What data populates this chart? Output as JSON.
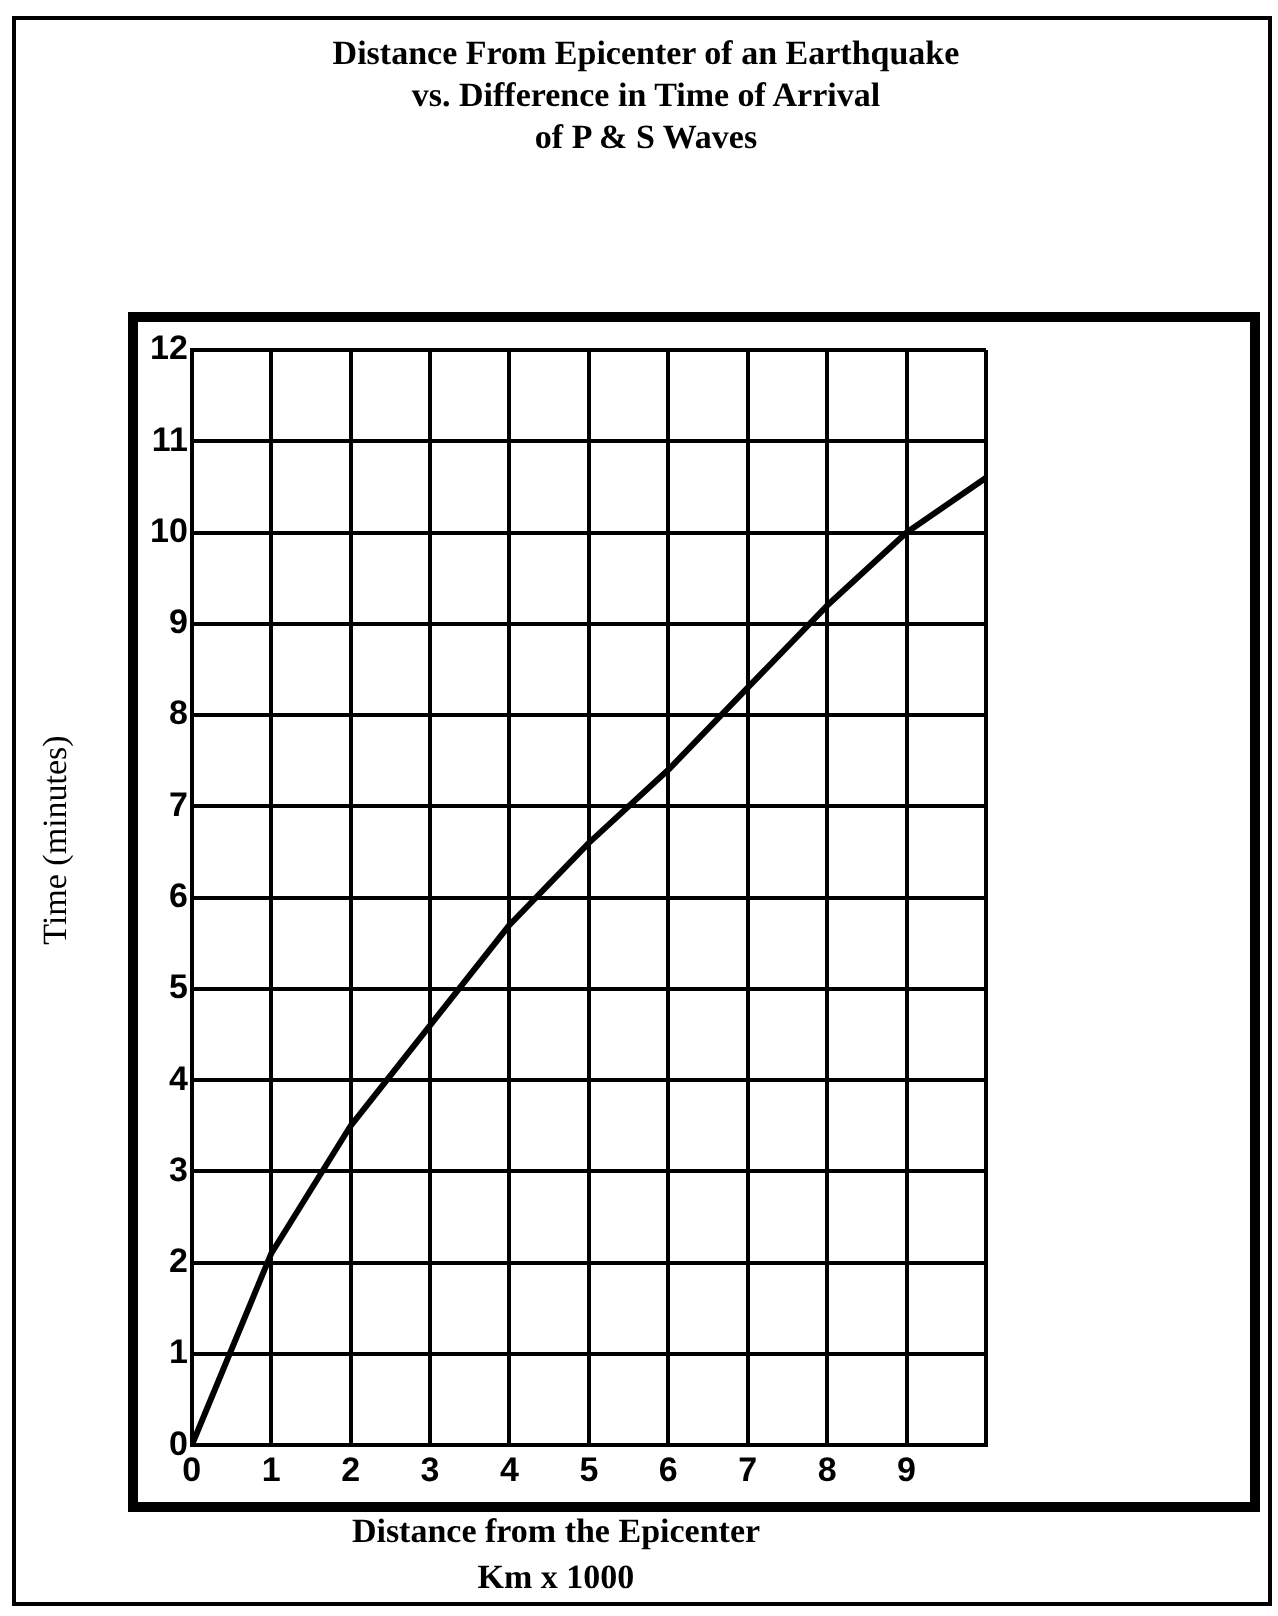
{
  "chart_data": {
    "type": "line",
    "title": "Distance From Epicenter of an Earthquake\nvs. Difference in Time of Arrival\nof P & S Waves",
    "xlabel": "Distance from the Epicenter\nKm  x 1000",
    "ylabel": "Time (minutes)",
    "x": [
      0,
      1,
      2,
      3,
      4,
      5,
      6,
      7,
      8,
      9,
      10
    ],
    "series": [
      {
        "color": "#000000",
        "values": [
          0,
          2.1,
          3.5,
          4.6,
          5.7,
          6.6,
          7.4,
          8.3,
          9.2,
          10,
          10.6
        ]
      }
    ],
    "xlim": [
      0,
      10
    ],
    "xticks": [
      0,
      1,
      2,
      3,
      4,
      5,
      6,
      7,
      8,
      9,
      {
        "value": 10,
        "label": null
      }
    ],
    "ylim": [
      0,
      12
    ],
    "yticks": [
      0,
      1,
      2,
      3,
      4,
      5,
      6,
      7,
      8,
      9,
      10,
      11,
      12
    ],
    "grid": true
  }
}
